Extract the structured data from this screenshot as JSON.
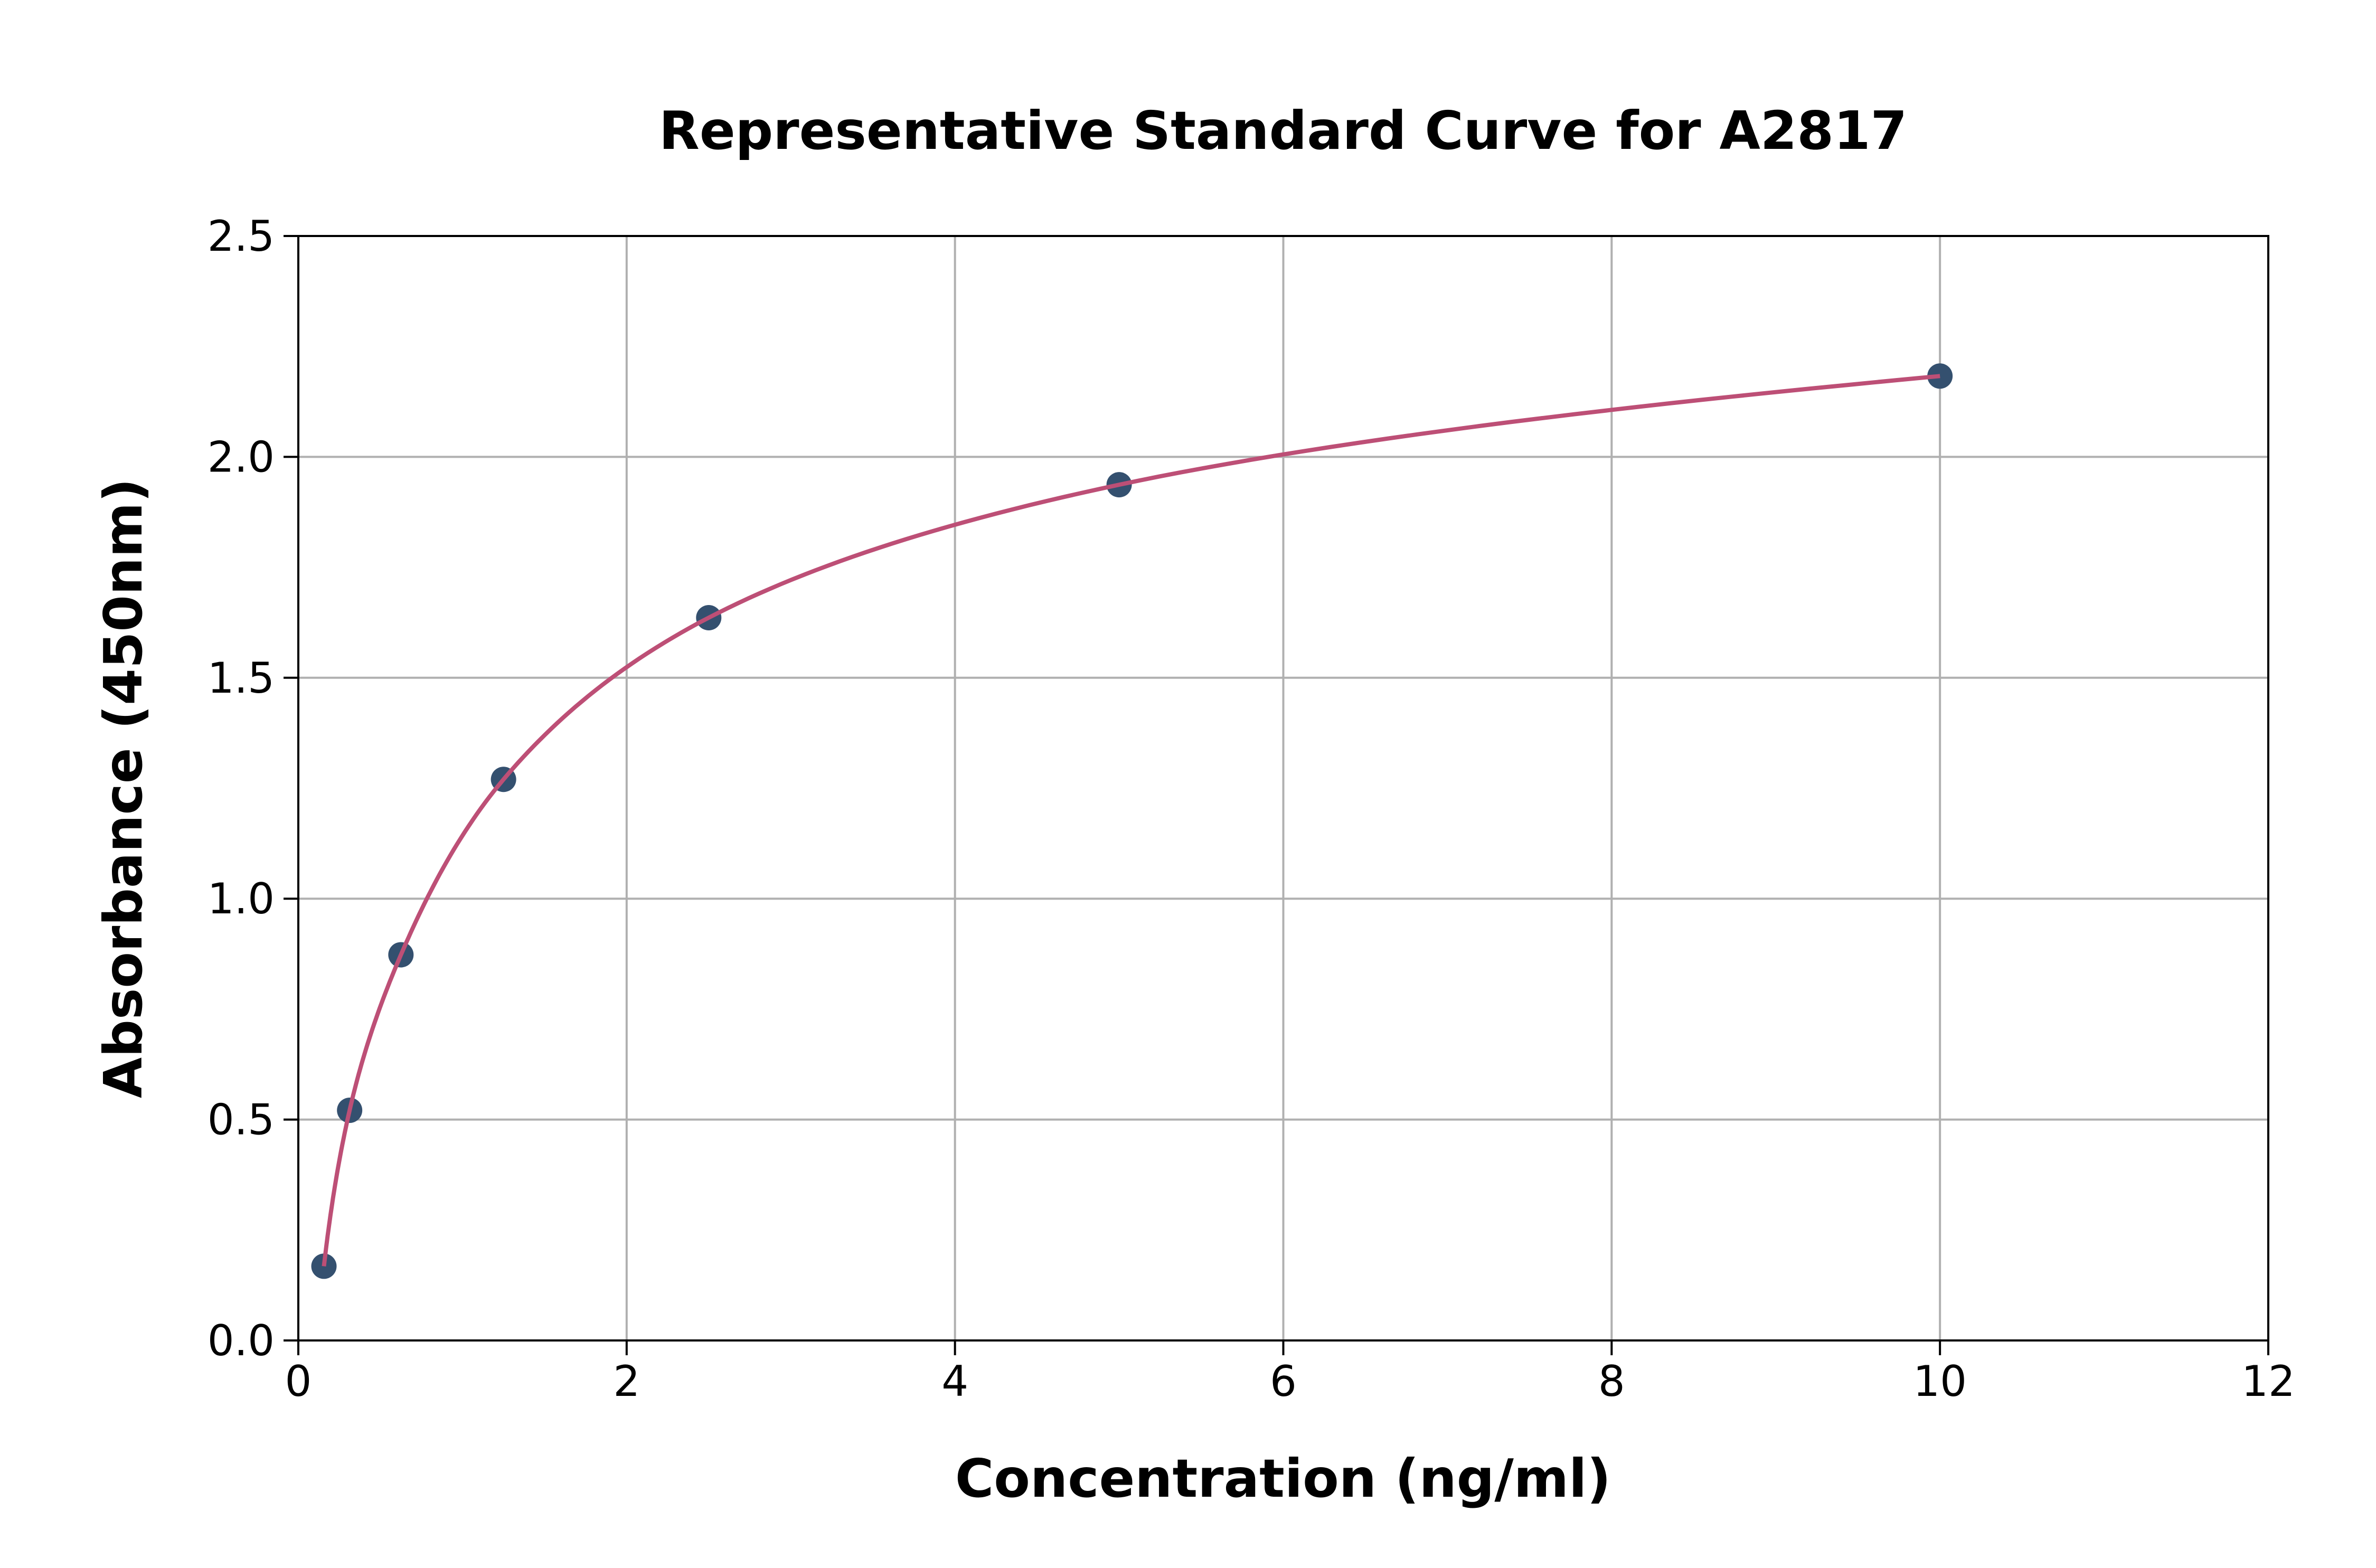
{
  "chart_data": {
    "type": "scatter",
    "title": "Representative Standard Curve for A2817",
    "xlabel": "Concentration (ng/ml)",
    "ylabel": "Absorbance (450nm)",
    "xlim": [
      0,
      12
    ],
    "ylim": [
      0,
      2.5
    ],
    "xticks": [
      "0",
      "2",
      "4",
      "6",
      "8",
      "10",
      "12"
    ],
    "yticks": [
      "0.0",
      "0.5",
      "1.0",
      "1.5",
      "2.0",
      "2.5"
    ],
    "grid": true,
    "x": [
      0.156,
      0.3125,
      0.625,
      1.25,
      2.5,
      5,
      10
    ],
    "y": [
      0.168,
      0.521,
      0.873,
      1.27,
      1.636,
      1.937,
      2.183
    ],
    "fit_curve": true,
    "colors": {
      "points": "#34506f",
      "curve": "#bd4f76",
      "grid": "#b0b0b0"
    }
  }
}
